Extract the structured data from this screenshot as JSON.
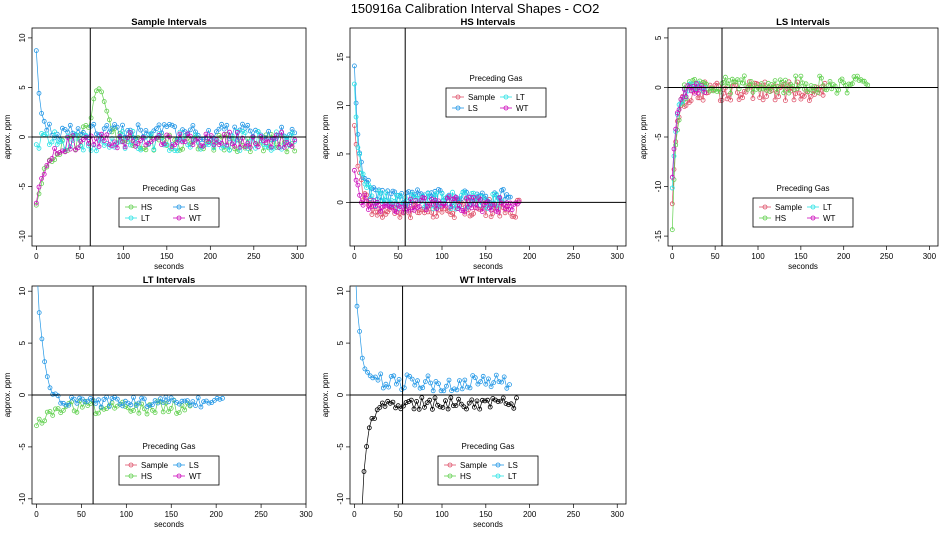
{
  "figure_title": "150916a   Calibration Interval Shapes - CO2",
  "colors": {
    "Sample": "#df536b",
    "HS": "#61d04f",
    "LS": "#2297e6",
    "LT": "#28e2e5",
    "WT": "#cd0bbc",
    "black": "#000000"
  },
  "chart_data": [
    {
      "type": "scatter",
      "title": "Sample Intervals",
      "xlabel": "seconds",
      "ylabel": "approx. ppm",
      "xlim": [
        -5,
        310
      ],
      "ylim": [
        -11,
        11
      ],
      "xticks": [
        0,
        50,
        100,
        150,
        200,
        250,
        300
      ],
      "yticks": [
        -10,
        -5,
        0,
        5,
        10
      ],
      "vline": 62,
      "hline": 0,
      "legend": {
        "title": "Preceding Gas",
        "entries": [
          "HS",
          "LS",
          "LT",
          "WT"
        ],
        "placement": "bottom-center"
      },
      "series": [
        {
          "name": "HS",
          "color": "HS",
          "seed": 1,
          "x0": 0,
          "dx": 3,
          "n": 100,
          "shape": "rise",
          "start": -7,
          "tau": 12,
          "base": -0.6,
          "noise": 0.9,
          "bump": {
            "at": 72,
            "amp": 5,
            "width": 14
          }
        },
        {
          "name": "LS",
          "color": "LS",
          "seed": 2,
          "x0": 0,
          "dx": 3,
          "n": 100,
          "shape": "fall",
          "start": 8.5,
          "tau": 5,
          "base": 0.5,
          "noise": 0.8
        },
        {
          "name": "LT",
          "color": "LT",
          "seed": 3,
          "x0": 0,
          "dx": 3,
          "n": 100,
          "shape": "flat",
          "start": 0,
          "tau": 1,
          "base": -0.4,
          "noise": 1.0
        },
        {
          "name": "WT",
          "color": "WT",
          "seed": 4,
          "x0": 0,
          "dx": 3,
          "n": 100,
          "shape": "rise",
          "start": -6.5,
          "tau": 14,
          "base": -0.3,
          "noise": 0.8
        }
      ]
    },
    {
      "type": "scatter",
      "title": "HS Intervals",
      "xlabel": "seconds",
      "ylabel": "approx. ppm",
      "xlim": [
        -5,
        310
      ],
      "ylim": [
        -4.5,
        18
      ],
      "xticks": [
        0,
        50,
        100,
        150,
        200,
        250,
        300
      ],
      "yticks": [
        0,
        5,
        10,
        15
      ],
      "vline": 58,
      "hline": 0,
      "legend": {
        "title": "Preceding Gas",
        "entries": [
          "Sample",
          "LT",
          "LS",
          "WT"
        ],
        "placement": "top-center"
      },
      "series": [
        {
          "name": "Sample",
          "color": "Sample",
          "seed": 5,
          "x0": 0,
          "dx": 2,
          "n": 95,
          "shape": "fall",
          "start": 8,
          "tau": 6,
          "base": -0.6,
          "noise": 1.0
        },
        {
          "name": "LS",
          "color": "LS",
          "seed": 6,
          "x0": 0,
          "dx": 2,
          "n": 90,
          "shape": "fall",
          "start": 14,
          "tau": 6,
          "base": 0.4,
          "noise": 1.0
        },
        {
          "name": "LT",
          "color": "LT",
          "seed": 7,
          "x0": 0,
          "dx": 2,
          "n": 85,
          "shape": "fall",
          "start": 12,
          "tau": 6,
          "base": 0.2,
          "noise": 0.9
        },
        {
          "name": "WT",
          "color": "WT",
          "seed": 8,
          "x0": 0,
          "dx": 2,
          "n": 95,
          "shape": "fall",
          "start": 3,
          "tau": 6,
          "base": -0.2,
          "noise": 0.8
        }
      ]
    },
    {
      "type": "scatter",
      "title": "LS Intervals",
      "xlabel": "seconds",
      "ylabel": "approx. ppm",
      "xlim": [
        -5,
        310
      ],
      "ylim": [
        -16,
        6
      ],
      "xticks": [
        0,
        50,
        100,
        150,
        200,
        250,
        300
      ],
      "yticks": [
        -15,
        -10,
        -5,
        0,
        5
      ],
      "vline": 58,
      "hline": 0,
      "legend": {
        "title": "Preceding Gas",
        "entries": [
          "Sample",
          "LT",
          "HS",
          "WT"
        ],
        "placement": "bottom-center"
      },
      "series": [
        {
          "name": "Sample",
          "color": "Sample",
          "seed": 9,
          "x0": 0,
          "dx": 2,
          "n": 90,
          "shape": "rise",
          "start": -12,
          "tau": 5,
          "base": -0.4,
          "noise": 1.0
        },
        {
          "name": "HS",
          "color": "HS",
          "seed": 10,
          "x0": 0,
          "dx": 2,
          "n": 115,
          "shape": "rise",
          "start": -14,
          "tau": 5,
          "base": 0.3,
          "noise": 0.9
        },
        {
          "name": "LT",
          "color": "LT",
          "seed": 11,
          "x0": 0,
          "dx": 2,
          "n": 20,
          "shape": "rise",
          "start": -10,
          "tau": 5,
          "base": 0,
          "noise": 0.6
        },
        {
          "name": "WT",
          "color": "WT",
          "seed": 12,
          "x0": 0,
          "dx": 2,
          "n": 20,
          "shape": "rise",
          "start": -9,
          "tau": 5,
          "base": 0,
          "noise": 0.6
        }
      ]
    },
    {
      "type": "scatter",
      "title": "LT Intervals",
      "xlabel": "seconds",
      "ylabel": "approx. ppm",
      "xlim": [
        -5,
        300
      ],
      "ylim": [
        -10.5,
        10.5
      ],
      "xticks": [
        0,
        50,
        100,
        150,
        200,
        250,
        300
      ],
      "yticks": [
        -10,
        -5,
        0,
        5,
        10
      ],
      "vline": 63,
      "hline": 0,
      "legend": {
        "title": "Preceding Gas",
        "entries": [
          "Sample",
          "LS",
          "HS",
          "WT"
        ],
        "placement": "bottom-center"
      },
      "series": [
        {
          "name": "HS",
          "color": "HS",
          "seed": 13,
          "x0": 0,
          "dx": 3,
          "n": 58,
          "shape": "rise",
          "start": -3,
          "tau": 14,
          "base": -1.2,
          "noise": 0.7
        },
        {
          "name": "LS",
          "color": "LS",
          "seed": 14,
          "x0": 0,
          "dx": 3,
          "n": 70,
          "shape": "fall",
          "start": 13,
          "tau": 7,
          "base": -0.7,
          "noise": 0.5
        }
      ]
    },
    {
      "type": "scatter",
      "title": "WT Intervals",
      "xlabel": "seconds",
      "ylabel": "approx. ppm",
      "xlim": [
        -5,
        310
      ],
      "ylim": [
        -10.5,
        10.5
      ],
      "xticks": [
        0,
        50,
        100,
        150,
        200,
        250,
        300
      ],
      "yticks": [
        -10,
        -5,
        0,
        5,
        10
      ],
      "vline": 55,
      "hline": 0,
      "legend": {
        "title": "Preceding Gas",
        "entries": [
          "Sample",
          "LS",
          "HS",
          "LT"
        ],
        "placement": "bottom-center"
      },
      "series": [
        {
          "name": "LS",
          "color": "LS",
          "seed": 15,
          "x0": 0,
          "dx": 3,
          "n": 60,
          "shape": "fall",
          "start": 14,
          "tau": 6,
          "base": 1.2,
          "noise": 0.8
        },
        {
          "name": "black",
          "color": "black",
          "seed": 16,
          "x0": 8,
          "dx": 3,
          "n": 60,
          "shape": "rise",
          "start": -12,
          "tau": 6,
          "base": -0.8,
          "noise": 0.6
        }
      ]
    }
  ]
}
